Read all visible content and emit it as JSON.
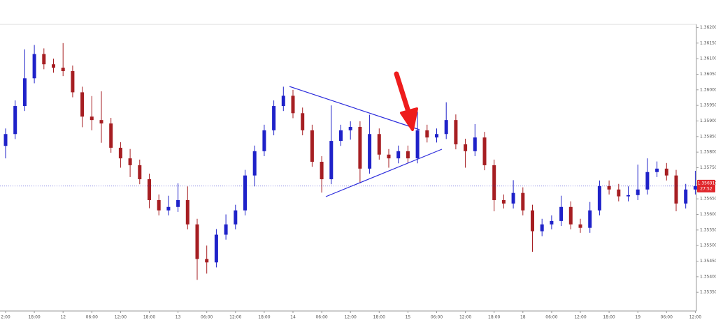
{
  "chart_data": {
    "type": "candlestick",
    "categories": [
      "2:00",
      null,
      null,
      "18:00",
      null,
      null,
      "12",
      null,
      null,
      "06:00",
      null,
      null,
      "12:00",
      null,
      null,
      "18:00",
      null,
      null,
      "13",
      null,
      null,
      "06:00",
      null,
      null,
      "12:00",
      null,
      null,
      "18:00",
      null,
      null,
      "14",
      null,
      null,
      "06:00",
      null,
      null,
      "12:00",
      null,
      null,
      "18:00",
      null,
      null,
      "15",
      null,
      null,
      "06:00",
      null,
      null,
      "12:00",
      null,
      null,
      "18:00",
      null,
      null,
      "18",
      null,
      null,
      "06:00",
      null,
      null,
      "12:00",
      null,
      null,
      "18:00",
      null,
      null,
      "19",
      null,
      null,
      "06:00",
      null,
      null,
      "12:00"
    ],
    "open": [
      1.3582,
      1.35858,
      1.35948,
      1.36037,
      1.36115,
      1.36082,
      1.36071,
      1.3606,
      1.35992,
      1.35914,
      1.35903,
      1.35892,
      1.35814,
      1.3578,
      1.35758,
      1.35713,
      1.35646,
      1.35613,
      1.35624,
      1.35646,
      1.35568,
      1.35457,
      1.35446,
      1.35535,
      1.35568,
      1.35613,
      1.35725,
      1.35803,
      1.3587,
      1.35948,
      1.35981,
      1.35925,
      1.3587,
      1.35769,
      1.35713,
      1.35836,
      1.3587,
      1.35881,
      1.35747,
      1.35858,
      1.35792,
      1.3578,
      1.35803,
      1.3578,
      1.3587,
      1.35847,
      1.35858,
      1.35903,
      1.35825,
      1.35803,
      1.35847,
      1.35758,
      1.35646,
      1.35635,
      1.35669,
      1.35613,
      1.35546,
      1.35568,
      1.35579,
      1.35624,
      1.35568,
      1.35557,
      1.35613,
      1.35691,
      1.3568,
      1.35658,
      1.35662,
      1.3568,
      1.35736,
      1.35747,
      1.35725,
      1.35635,
      1.3568
    ],
    "high": [
      1.35876,
      1.35966,
      1.3613,
      1.36144,
      1.36133,
      1.361,
      1.3615,
      1.36078,
      1.3601,
      1.3598,
      1.35995,
      1.3591,
      1.35832,
      1.3581,
      1.35776,
      1.35731,
      1.35664,
      1.3566,
      1.357,
      1.3569,
      1.35586,
      1.355,
      1.35553,
      1.356,
      1.35631,
      1.35743,
      1.35821,
      1.35888,
      1.35966,
      1.3601,
      1.36,
      1.35943,
      1.35888,
      1.35787,
      1.3595,
      1.35888,
      1.35899,
      1.35899,
      1.3592,
      1.35876,
      1.3581,
      1.35821,
      1.35821,
      1.3593,
      1.35888,
      1.35876,
      1.3596,
      1.35921,
      1.35843,
      1.3589,
      1.35865,
      1.35776,
      1.35664,
      1.3571,
      1.35687,
      1.35631,
      1.35586,
      1.35597,
      1.3566,
      1.35642,
      1.35586,
      1.3564,
      1.35709,
      1.35709,
      1.35698,
      1.3569,
      1.3576,
      1.3578,
      1.3577,
      1.35765,
      1.35743,
      1.35698,
      1.3574
    ],
    "low": [
      1.3578,
      1.35842,
      1.35932,
      1.36021,
      1.36066,
      1.36055,
      1.36044,
      1.35976,
      1.3588,
      1.3587,
      1.3583,
      1.35798,
      1.3575,
      1.3572,
      1.35697,
      1.3562,
      1.35597,
      1.35597,
      1.35608,
      1.35552,
      1.3539,
      1.3541,
      1.3543,
      1.35519,
      1.35552,
      1.35597,
      1.3569,
      1.35787,
      1.35854,
      1.35932,
      1.35909,
      1.35854,
      1.35753,
      1.3567,
      1.35697,
      1.3582,
      1.3584,
      1.357,
      1.35731,
      1.35776,
      1.3575,
      1.35764,
      1.35764,
      1.35764,
      1.35831,
      1.35831,
      1.35842,
      1.35809,
      1.3575,
      1.35787,
      1.35742,
      1.3561,
      1.35619,
      1.35619,
      1.35597,
      1.3548,
      1.3553,
      1.35552,
      1.35563,
      1.35552,
      1.35541,
      1.35541,
      1.35597,
      1.35664,
      1.35642,
      1.35642,
      1.35646,
      1.35664,
      1.3572,
      1.35709,
      1.3561,
      1.35619,
      1.35664
    ],
    "close": [
      1.35858,
      1.35948,
      1.36037,
      1.36115,
      1.36082,
      1.36071,
      1.3606,
      1.35992,
      1.35914,
      1.35903,
      1.35892,
      1.35814,
      1.3578,
      1.35758,
      1.35713,
      1.35646,
      1.35613,
      1.35624,
      1.35646,
      1.35568,
      1.35457,
      1.35446,
      1.35535,
      1.35568,
      1.35613,
      1.35725,
      1.35803,
      1.3587,
      1.35948,
      1.35981,
      1.35925,
      1.3587,
      1.35769,
      1.35713,
      1.35836,
      1.3587,
      1.35881,
      1.35747,
      1.35858,
      1.35792,
      1.3578,
      1.35803,
      1.3578,
      1.3587,
      1.35847,
      1.35858,
      1.35903,
      1.35825,
      1.35803,
      1.35847,
      1.35758,
      1.35646,
      1.35635,
      1.35669,
      1.35613,
      1.35546,
      1.35568,
      1.35579,
      1.35624,
      1.35568,
      1.35557,
      1.35613,
      1.35691,
      1.3568,
      1.35658,
      1.35662,
      1.3568,
      1.35736,
      1.35747,
      1.35725,
      1.35635,
      1.3568,
      1.35691
    ],
    "up_color": "#1f22c9",
    "down_color": "#a61e22",
    "ylim": [
      1.3529,
      1.3621
    ],
    "yticks": [
      {
        "value": 1.362,
        "label": "1.36200"
      },
      {
        "value": 1.3615,
        "label": "1.36150"
      },
      {
        "value": 1.361,
        "label": "1.36100"
      },
      {
        "value": 1.3605,
        "label": "1.36050"
      },
      {
        "value": 1.36,
        "label": "1.36000"
      },
      {
        "value": 1.3595,
        "label": "1.35950"
      },
      {
        "value": 1.359,
        "label": "1.35900"
      },
      {
        "value": 1.3585,
        "label": "1.35850"
      },
      {
        "value": 1.358,
        "label": "1.35800"
      },
      {
        "value": 1.3575,
        "label": "1.35750"
      },
      {
        "value": 1.357,
        "label": "1.35700"
      },
      {
        "value": 1.3565,
        "label": "1.35650"
      },
      {
        "value": 1.356,
        "label": "1.35600"
      },
      {
        "value": 1.3555,
        "label": "1.35550"
      },
      {
        "value": 1.355,
        "label": "1.35500"
      },
      {
        "value": 1.3545,
        "label": "1.35450"
      },
      {
        "value": 1.354,
        "label": "1.35400"
      },
      {
        "value": 1.3535,
        "label": "1.35350"
      }
    ],
    "last_price": {
      "value": 1.35691,
      "label": "1.35691"
    },
    "countdown": "27:52"
  }
}
